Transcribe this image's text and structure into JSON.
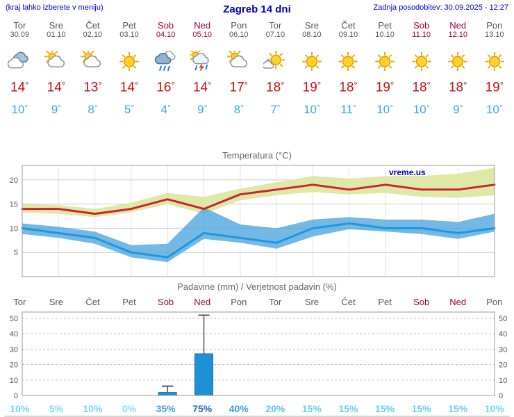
{
  "header": {
    "left_note": "(kraj lahko izberete v meniju)",
    "title": "Zagreb 14 dni",
    "updated": "Zadnja posodobitev: 30.09.2025 - 12:27"
  },
  "units": {
    "degree": "°",
    "percent": "%"
  },
  "days": [
    {
      "name": "Tor",
      "date": "30.09",
      "weekend": false,
      "icon": "cloudy",
      "high": 14,
      "low": 10
    },
    {
      "name": "Sre",
      "date": "01.10",
      "weekend": false,
      "icon": "partly-cloudy",
      "high": 14,
      "low": 9
    },
    {
      "name": "Čet",
      "date": "02.10",
      "weekend": false,
      "icon": "partly-cloudy",
      "high": 13,
      "low": 8
    },
    {
      "name": "Pet",
      "date": "03.10",
      "weekend": false,
      "icon": "sunny",
      "high": 14,
      "low": 5
    },
    {
      "name": "Sob",
      "date": "04.10",
      "weekend": true,
      "icon": "rain",
      "high": 16,
      "low": 4
    },
    {
      "name": "Ned",
      "date": "05.10",
      "weekend": true,
      "icon": "storm",
      "high": 14,
      "low": 9
    },
    {
      "name": "Pon",
      "date": "06.10",
      "weekend": false,
      "icon": "partly-cloudy",
      "high": 17,
      "low": 8
    },
    {
      "name": "Tor",
      "date": "07.10",
      "weekend": false,
      "icon": "mostly-sunny",
      "high": 18,
      "low": 7
    },
    {
      "name": "Sre",
      "date": "08.10",
      "weekend": false,
      "icon": "sunny",
      "high": 19,
      "low": 10
    },
    {
      "name": "Čet",
      "date": "09.10",
      "weekend": false,
      "icon": "sunny",
      "high": 18,
      "low": 11
    },
    {
      "name": "Pet",
      "date": "10.10",
      "weekend": false,
      "icon": "sunny",
      "high": 19,
      "low": 10
    },
    {
      "name": "Sob",
      "date": "11.10",
      "weekend": true,
      "icon": "sunny",
      "high": 18,
      "low": 10
    },
    {
      "name": "Ned",
      "date": "12.10",
      "weekend": true,
      "icon": "sunny",
      "high": 18,
      "low": 9
    },
    {
      "name": "Pon",
      "date": "13.10",
      "weekend": false,
      "icon": "sunny",
      "high": 19,
      "low": 10
    }
  ],
  "chart_data": [
    {
      "type": "line",
      "title": "Temperatura (°C)",
      "watermark": "vreme.us",
      "x_labels": [
        "Tor",
        "Sre",
        "Čet",
        "Pet",
        "Sob",
        "Ned",
        "Pon",
        "Tor",
        "Sre",
        "Čet",
        "Pet",
        "Sob",
        "Ned",
        "Pon"
      ],
      "ylim": [
        0,
        23
      ],
      "yticks": [
        5,
        10,
        15,
        20
      ],
      "series": [
        {
          "name": "max-temp",
          "color": "#cc2233",
          "values": [
            14,
            14,
            13,
            14,
            16,
            14,
            17,
            18,
            19,
            18,
            19,
            18,
            18,
            19
          ]
        },
        {
          "name": "min-temp",
          "color": "#2196dd",
          "values": [
            10,
            9,
            8,
            5,
            4,
            9,
            8,
            7,
            10,
            11,
            10,
            10,
            9,
            10
          ]
        }
      ],
      "max_band": {
        "color": "#dde9a4",
        "upper": [
          15,
          14.8,
          14,
          15.3,
          17.3,
          16.5,
          18.2,
          19.5,
          20.8,
          20.3,
          20.8,
          20.8,
          21.3,
          22.5
        ],
        "lower": [
          13.3,
          13,
          12.3,
          13.3,
          15,
          13,
          15.8,
          16.8,
          17.5,
          17,
          17.3,
          16.5,
          16.3,
          16.8
        ]
      },
      "min_band": {
        "color": "#4fa8e0",
        "upper": [
          11,
          10.3,
          9.3,
          6.5,
          6.8,
          14.3,
          10.8,
          10,
          11.8,
          12.3,
          11.8,
          11.8,
          11.3,
          13
        ],
        "lower": [
          8.8,
          8,
          6.8,
          4,
          3,
          7.8,
          7,
          5.8,
          8.3,
          9.8,
          9.3,
          8.8,
          7.8,
          9.3
        ]
      },
      "legend": "none",
      "grid": true
    },
    {
      "type": "bar",
      "title": "Padavine (mm) / Verjetnost padavin (%)",
      "categories": [
        "Tor",
        "Sre",
        "Čet",
        "Pet",
        "Sob",
        "Ned",
        "Pon",
        "Tor",
        "Sre",
        "Čet",
        "Pet",
        "Sob",
        "Ned",
        "Pon"
      ],
      "weekend_flags": [
        false,
        false,
        false,
        false,
        true,
        true,
        false,
        false,
        false,
        false,
        false,
        true,
        true,
        false
      ],
      "values": [
        0,
        0,
        0,
        0,
        2,
        27,
        0,
        0,
        0,
        0,
        0,
        0,
        0,
        0
      ],
      "whiskers": [
        0,
        0,
        0,
        0,
        6,
        52,
        0,
        0,
        0,
        0,
        0,
        0,
        0,
        0
      ],
      "bar_color": "#1e90d8",
      "ylim": [
        0,
        54
      ],
      "yticks": [
        0,
        10,
        20,
        30,
        40,
        50
      ],
      "grid": true,
      "probabilities": [
        {
          "value": 10,
          "color": "#6fd9f2"
        },
        {
          "value": 5,
          "color": "#79ddf4"
        },
        {
          "value": 10,
          "color": "#6fd9f2"
        },
        {
          "value": 0,
          "color": "#83e1f6"
        },
        {
          "value": 35,
          "color": "#3f9de0"
        },
        {
          "value": 75,
          "color": "#2563c9"
        },
        {
          "value": 40,
          "color": "#3f9de0"
        },
        {
          "value": 20,
          "color": "#58c6ec"
        },
        {
          "value": 15,
          "color": "#66d1ee"
        },
        {
          "value": 15,
          "color": "#66d1ee"
        },
        {
          "value": 15,
          "color": "#66d1ee"
        },
        {
          "value": 15,
          "color": "#66d1ee"
        },
        {
          "value": 15,
          "color": "#66d1ee"
        },
        {
          "value": 10,
          "color": "#6fd9f2"
        }
      ]
    }
  ]
}
